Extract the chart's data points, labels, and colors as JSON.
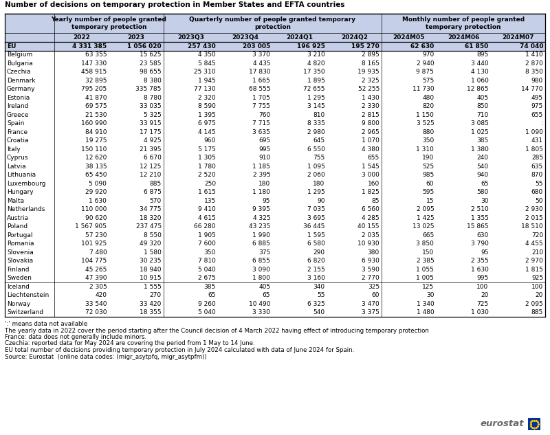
{
  "title": "Number of decisions on temporary protection in Member States and EFTA countries",
  "col_groups": [
    {
      "label": "Yearly number of people granted\ntemporary protection",
      "span": [
        1,
        3
      ]
    },
    {
      "label": "Quarterly number of people granted temporary\nprotection",
      "span": [
        3,
        7
      ]
    },
    {
      "label": "Monthly number of people granted\ntemporary protection",
      "span": [
        7,
        10
      ]
    }
  ],
  "columns": [
    "2022",
    "2023",
    "2023Q3",
    "2023Q4",
    "2024Q1",
    "2024Q2",
    "2024M05",
    "2024M06",
    "2024M07"
  ],
  "rows": [
    {
      "country": "EU",
      "bold": true,
      "eu": true,
      "data": [
        "4 331 385",
        "1 056 020",
        "257 430",
        "203 005",
        "196 925",
        "195 270",
        "62 630",
        "61 850",
        "74 040"
      ]
    },
    {
      "country": "Belgium",
      "bold": false,
      "eu": false,
      "data": [
        "63 355",
        "15 625",
        "4 350",
        "3 370",
        "3 210",
        "2 895",
        "970",
        "895",
        "1 410"
      ]
    },
    {
      "country": "Bulgaria",
      "bold": false,
      "eu": false,
      "data": [
        "147 330",
        "23 585",
        "5 845",
        "4 435",
        "4 820",
        "8 165",
        "2 940",
        "3 440",
        "2 870"
      ]
    },
    {
      "country": "Czechia",
      "bold": false,
      "eu": false,
      "data": [
        "458 915",
        "98 655",
        "25 310",
        "17 830",
        "17 350",
        "19 935",
        "9 875",
        "4 130",
        "8 350"
      ]
    },
    {
      "country": "Denmark",
      "bold": false,
      "eu": false,
      "data": [
        "32 895",
        "8 380",
        "1 945",
        "1 665",
        "1 895",
        "2 325",
        "575",
        "1 060",
        "980"
      ]
    },
    {
      "country": "Germany",
      "bold": false,
      "eu": false,
      "data": [
        "795 205",
        "335 785",
        "77 130",
        "68 555",
        "72 655",
        "52 255",
        "11 730",
        "12 865",
        "14 770"
      ]
    },
    {
      "country": "Estonia",
      "bold": false,
      "eu": false,
      "data": [
        "41 870",
        "8 780",
        "2 320",
        "1 705",
        "1 295",
        "1 430",
        "480",
        "405",
        "495"
      ]
    },
    {
      "country": "Ireland",
      "bold": false,
      "eu": false,
      "data": [
        "69 575",
        "33 035",
        "8 590",
        "7 755",
        "3 145",
        "2 330",
        "820",
        "850",
        "975"
      ]
    },
    {
      "country": "Greece",
      "bold": false,
      "eu": false,
      "data": [
        "21 530",
        "5 325",
        "1 395",
        "760",
        "810",
        "2 815",
        "1 150",
        "710",
        "655"
      ]
    },
    {
      "country": "Spain",
      "bold": false,
      "eu": false,
      "data": [
        "160 990",
        "33 915",
        "6 975",
        "7 715",
        "8 335",
        "9 800",
        "3 525",
        "3 085",
        ":"
      ]
    },
    {
      "country": "France",
      "bold": false,
      "eu": false,
      "data": [
        "84 910",
        "17 175",
        "4 145",
        "3 635",
        "2 980",
        "2 965",
        "880",
        "1 025",
        "1 090"
      ]
    },
    {
      "country": "Croatia",
      "bold": false,
      "eu": false,
      "data": [
        "19 275",
        "4 925",
        "960",
        "695",
        "645",
        "1 070",
        "350",
        "385",
        "431"
      ]
    },
    {
      "country": "Italy",
      "bold": false,
      "eu": false,
      "data": [
        "150 110",
        "21 395",
        "5 175",
        "995",
        "6 550",
        "4 380",
        "1 310",
        "1 380",
        "1 805"
      ]
    },
    {
      "country": "Cyprus",
      "bold": false,
      "eu": false,
      "data": [
        "12 620",
        "6 670",
        "1 305",
        "910",
        "755",
        "655",
        "190",
        "240",
        "285"
      ]
    },
    {
      "country": "Latvia",
      "bold": false,
      "eu": false,
      "data": [
        "38 135",
        "12 125",
        "1 780",
        "1 185",
        "1 095",
        "1 545",
        "525",
        "540",
        "635"
      ]
    },
    {
      "country": "Lithuania",
      "bold": false,
      "eu": false,
      "data": [
        "65 450",
        "12 210",
        "2 520",
        "2 395",
        "2 060",
        "3 000",
        "985",
        "940",
        "870"
      ]
    },
    {
      "country": "Luxembourg",
      "bold": false,
      "eu": false,
      "data": [
        "5 090",
        "885",
        "250",
        "180",
        "180",
        "160",
        "60",
        "65",
        "55"
      ]
    },
    {
      "country": "Hungary",
      "bold": false,
      "eu": false,
      "data": [
        "29 920",
        "6 875",
        "1 615",
        "1 180",
        "1 295",
        "1 825",
        "595",
        "580",
        "680"
      ]
    },
    {
      "country": "Malta",
      "bold": false,
      "eu": false,
      "data": [
        "1 630",
        "570",
        "135",
        "95",
        "90",
        "85",
        "15",
        "30",
        "50"
      ]
    },
    {
      "country": "Netherlands",
      "bold": false,
      "eu": false,
      "data": [
        "110 000",
        "34 775",
        "9 410",
        "9 395",
        "7 035",
        "6 560",
        "2 095",
        "2 510",
        "2 930"
      ]
    },
    {
      "country": "Austria",
      "bold": false,
      "eu": false,
      "data": [
        "90 620",
        "18 320",
        "4 615",
        "4 325",
        "3 695",
        "4 285",
        "1 425",
        "1 355",
        "2 015"
      ]
    },
    {
      "country": "Poland",
      "bold": false,
      "eu": false,
      "data": [
        "1 567 905",
        "237 475",
        "66 280",
        "43 235",
        "36 445",
        "40 155",
        "13 025",
        "15 865",
        "18 510"
      ]
    },
    {
      "country": "Portugal",
      "bold": false,
      "eu": false,
      "data": [
        "57 230",
        "8 550",
        "1 905",
        "1 990",
        "1 595",
        "2 035",
        "665",
        "630",
        "720"
      ]
    },
    {
      "country": "Romania",
      "bold": false,
      "eu": false,
      "data": [
        "101 925",
        "49 320",
        "7 600",
        "6 885",
        "6 580",
        "10 930",
        "3 850",
        "3 790",
        "4 455"
      ]
    },
    {
      "country": "Slovenia",
      "bold": false,
      "eu": false,
      "data": [
        "7 480",
        "1 580",
        "350",
        "375",
        "290",
        "380",
        "150",
        "95",
        "210"
      ]
    },
    {
      "country": "Slovakia",
      "bold": false,
      "eu": false,
      "data": [
        "104 775",
        "30 235",
        "7 810",
        "6 855",
        "6 820",
        "6 930",
        "2 385",
        "2 355",
        "2 970"
      ]
    },
    {
      "country": "Finland",
      "bold": false,
      "eu": false,
      "data": [
        "45 265",
        "18 940",
        "5 040",
        "3 090",
        "2 155",
        "3 590",
        "1 055",
        "1 630",
        "1 815"
      ]
    },
    {
      "country": "Sweden",
      "bold": false,
      "eu": false,
      "data": [
        "47 390",
        "10 915",
        "2 675",
        "1 800",
        "3 160",
        "2 770",
        "1 005",
        "995",
        "925"
      ]
    },
    {
      "country": "Iceland",
      "bold": false,
      "eu": false,
      "data": [
        "2 305",
        "1 555",
        "385",
        "405",
        "340",
        "325",
        "125",
        "100",
        "100"
      ]
    },
    {
      "country": "Liechtenstein",
      "bold": false,
      "eu": false,
      "data": [
        "420",
        "270",
        "65",
        "65",
        "55",
        "60",
        "30",
        "20",
        "20"
      ]
    },
    {
      "country": "Norway",
      "bold": false,
      "eu": false,
      "data": [
        "33 540",
        "33 420",
        "9 260",
        "10 490",
        "6 325",
        "3 470",
        "1 340",
        "725",
        "2 095"
      ]
    },
    {
      "country": "Switzerland",
      "bold": false,
      "eu": false,
      "data": [
        "72 030",
        "18 355",
        "5 040",
        "3 330",
        "540",
        "3 375",
        "1 480",
        "1 030",
        "885"
      ]
    }
  ],
  "footnotes": [
    "':' means data not available",
    "The yearly data in 2022 cover the period starting after the Council decision of 4 March 2022 having effect of introducing temporary protection",
    "France: data does not generally include minors.",
    "Czechia: reported data for May 2024 are covering the period from 1 May to 14 June.",
    "EU total number of decisions providing temporary protection in July 2024 calculated with data of June 2024 for Spain.",
    "Source: Eurostat  (online data codes: (migr_asytpfq, migr_asytpfm))"
  ],
  "header_bg": "#c5cfe8",
  "eu_row_bg": "#c5cfe8",
  "title_fontsize": 7.5,
  "header_fontsize": 6.5,
  "subheader_fontsize": 6.5,
  "data_fontsize": 6.5,
  "footnote_fontsize": 6.2
}
